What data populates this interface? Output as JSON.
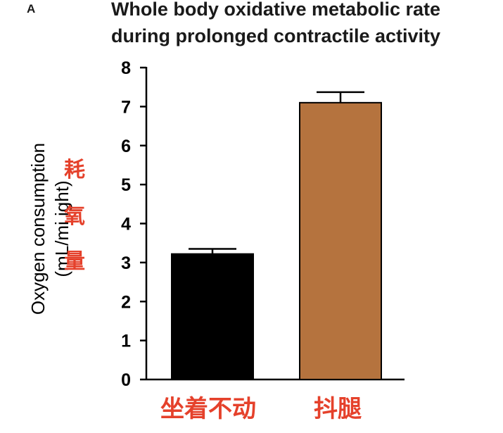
{
  "panel_label": "A",
  "chart_data": {
    "type": "bar",
    "title": [
      "Whole body oxidative metabolic rate",
      "during prolonged contractile activity"
    ],
    "ylabel": [
      "Oxygen consumption",
      "(mL/mi   ight)"
    ],
    "ylabel_overlay": [
      "耗",
      "氧",
      "量"
    ],
    "categories": [
      "坐着不动",
      "抖腿"
    ],
    "values": [
      3.22,
      7.1
    ],
    "errors": [
      0.13,
      0.27
    ],
    "ylim": [
      0,
      8
    ],
    "yticks": [
      0,
      1,
      2,
      3,
      4,
      5,
      6,
      7,
      8
    ],
    "bar_colors": [
      "#000000",
      "#b5733e"
    ],
    "category_label_color": "#e5412b",
    "grid": false
  }
}
